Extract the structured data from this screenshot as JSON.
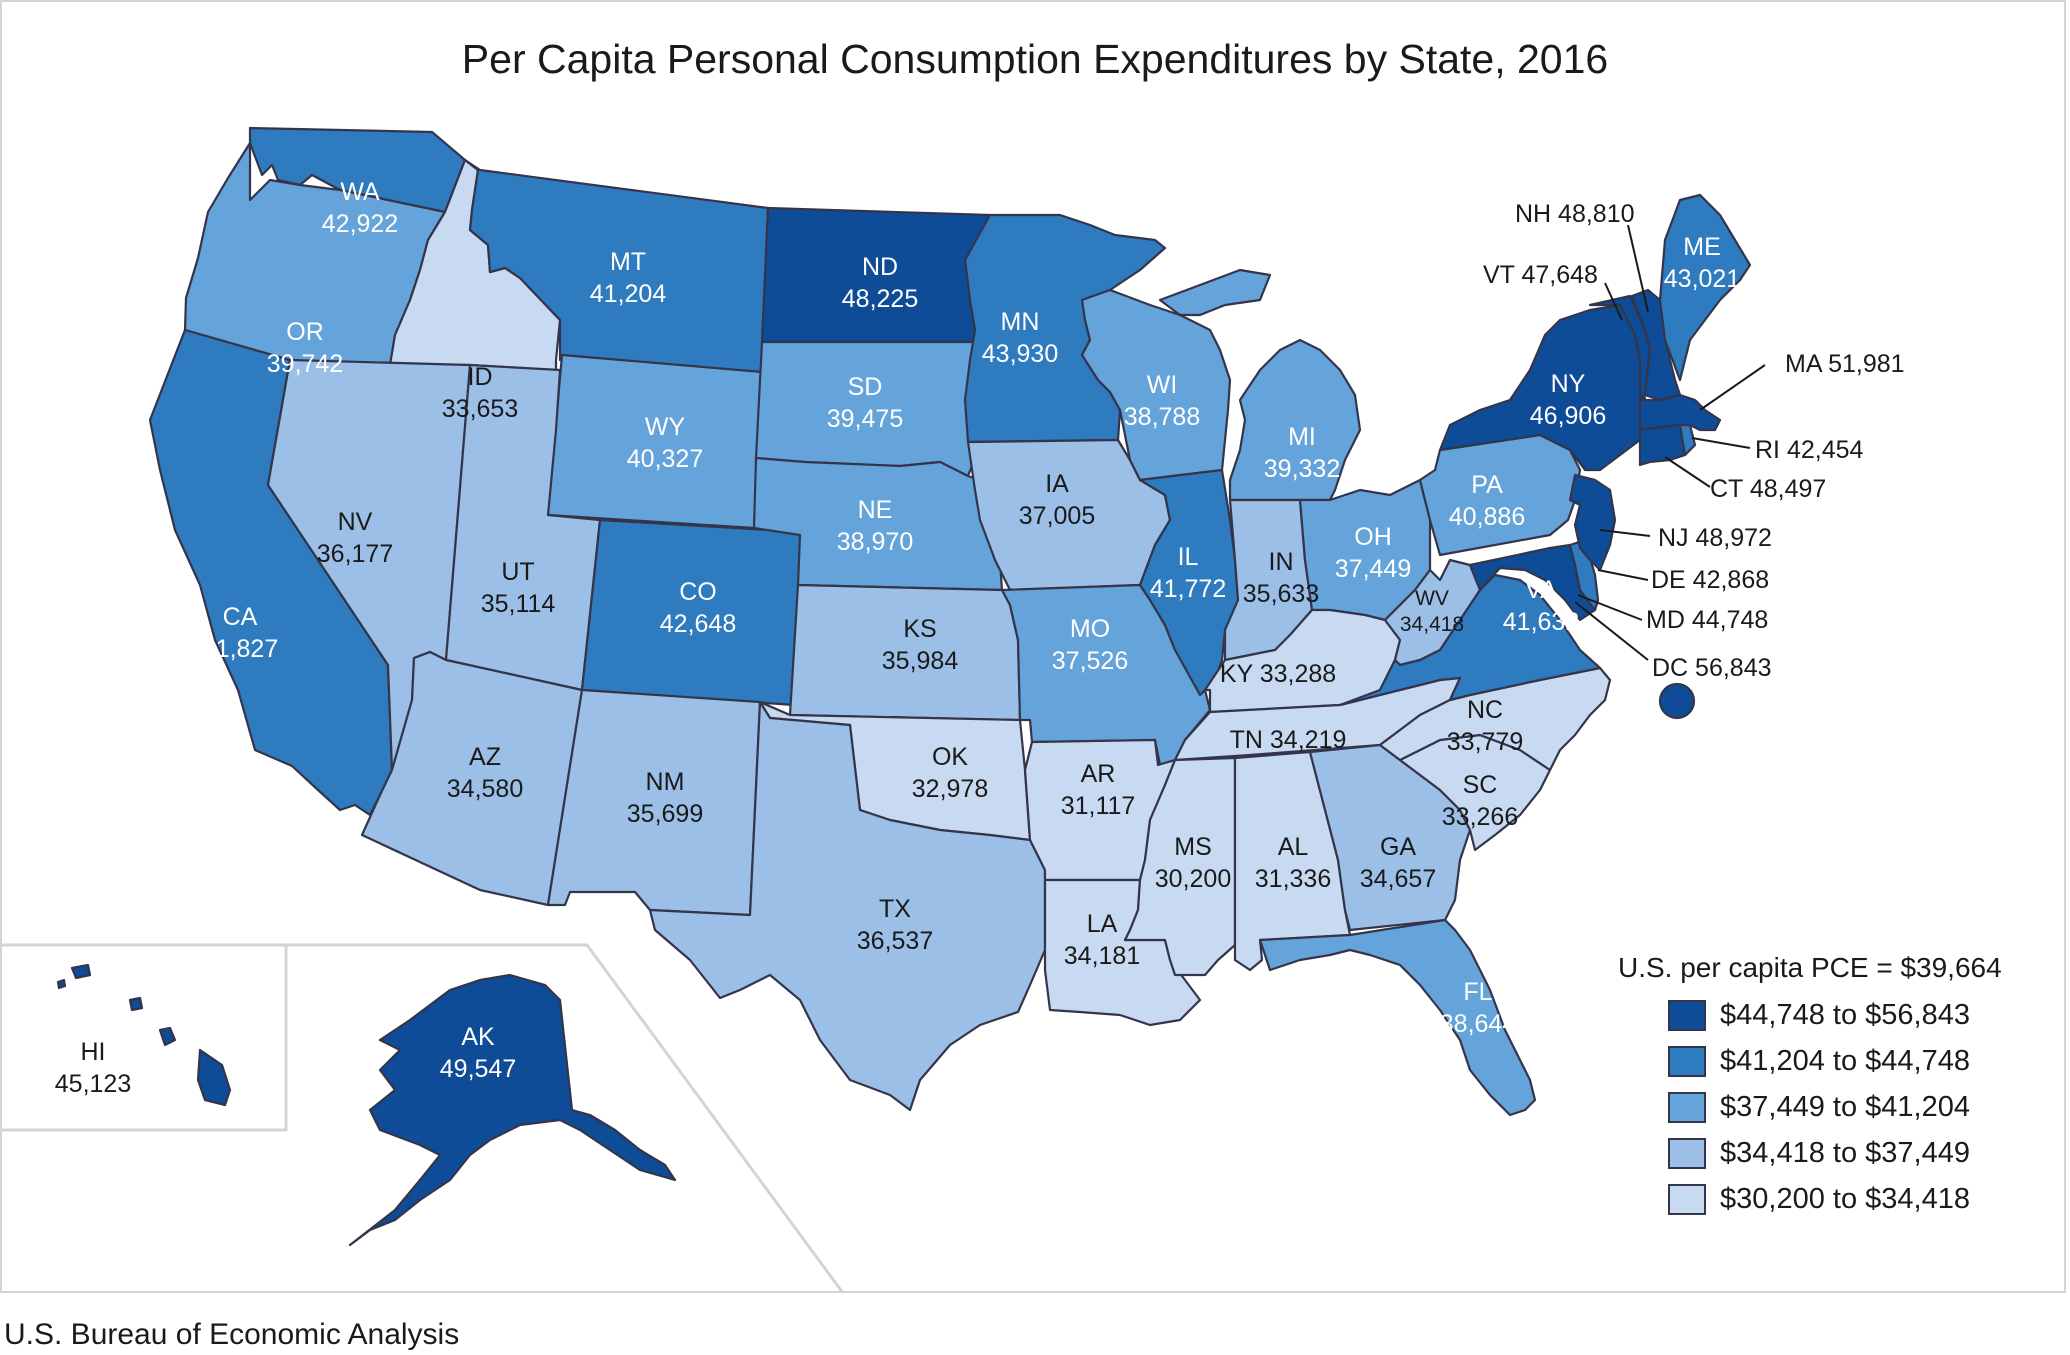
{
  "title": "Per Capita Personal Consumption Expenditures by State, 2016",
  "source": "U.S. Bureau of Economic Analysis",
  "legend": {
    "note": "U.S. per capita PCE = $39,664",
    "bins": [
      {
        "label": "$44,748 to $56,843",
        "color": "#0f4c97"
      },
      {
        "label": "$41,204 to $44,748",
        "color": "#2e7bc0"
      },
      {
        "label": "$37,449 to $41,204",
        "color": "#65a4da"
      },
      {
        "label": "$34,418 to $37,449",
        "color": "#9bbfe6"
      },
      {
        "label": "$30,200 to $34,418",
        "color": "#c8daf1"
      }
    ]
  },
  "states": {
    "WA": {
      "abbr": "WA",
      "value": "42,922",
      "bin": 1
    },
    "OR": {
      "abbr": "OR",
      "value": "39,742",
      "bin": 2
    },
    "CA": {
      "abbr": "CA",
      "value": "41,827",
      "bin": 1
    },
    "ID": {
      "abbr": "ID",
      "value": "33,653",
      "bin": 4
    },
    "NV": {
      "abbr": "NV",
      "value": "36,177",
      "bin": 3
    },
    "MT": {
      "abbr": "MT",
      "value": "41,204",
      "bin": 1
    },
    "WY": {
      "abbr": "WY",
      "value": "40,327",
      "bin": 2
    },
    "UT": {
      "abbr": "UT",
      "value": "35,114",
      "bin": 3
    },
    "AZ": {
      "abbr": "AZ",
      "value": "34,580",
      "bin": 3
    },
    "CO": {
      "abbr": "CO",
      "value": "42,648",
      "bin": 1
    },
    "NM": {
      "abbr": "NM",
      "value": "35,699",
      "bin": 3
    },
    "ND": {
      "abbr": "ND",
      "value": "48,225",
      "bin": 0
    },
    "SD": {
      "abbr": "SD",
      "value": "39,475",
      "bin": 2
    },
    "NE": {
      "abbr": "NE",
      "value": "38,970",
      "bin": 2
    },
    "KS": {
      "abbr": "KS",
      "value": "35,984",
      "bin": 3
    },
    "OK": {
      "abbr": "OK",
      "value": "32,978",
      "bin": 4
    },
    "TX": {
      "abbr": "TX",
      "value": "36,537",
      "bin": 3
    },
    "MN": {
      "abbr": "MN",
      "value": "43,930",
      "bin": 1
    },
    "IA": {
      "abbr": "IA",
      "value": "37,005",
      "bin": 3
    },
    "MO": {
      "abbr": "MO",
      "value": "37,526",
      "bin": 2
    },
    "AR": {
      "abbr": "AR",
      "value": "31,117",
      "bin": 4
    },
    "LA": {
      "abbr": "LA",
      "value": "34,181",
      "bin": 4
    },
    "WI": {
      "abbr": "WI",
      "value": "38,788",
      "bin": 2
    },
    "IL": {
      "abbr": "IL",
      "value": "41,772",
      "bin": 1
    },
    "MI": {
      "abbr": "MI",
      "value": "39,332",
      "bin": 2
    },
    "IN": {
      "abbr": "IN",
      "value": "35,633",
      "bin": 3
    },
    "OH": {
      "abbr": "OH",
      "value": "37,449",
      "bin": 2
    },
    "KY": {
      "abbr": "KY",
      "value": "33,288",
      "bin": 4
    },
    "TN": {
      "abbr": "TN",
      "value": "34,219",
      "bin": 4
    },
    "MS": {
      "abbr": "MS",
      "value": "30,200",
      "bin": 4
    },
    "AL": {
      "abbr": "AL",
      "value": "31,336",
      "bin": 4
    },
    "GA": {
      "abbr": "GA",
      "value": "34,657",
      "bin": 3
    },
    "FL": {
      "abbr": "FL",
      "value": "38,644",
      "bin": 2
    },
    "SC": {
      "abbr": "SC",
      "value": "33,266",
      "bin": 4
    },
    "NC": {
      "abbr": "NC",
      "value": "33,779",
      "bin": 4
    },
    "VA": {
      "abbr": "VA",
      "value": "41,632",
      "bin": 1
    },
    "WV": {
      "abbr": "WV",
      "value": "34,418",
      "bin": 3
    },
    "PA": {
      "abbr": "PA",
      "value": "40,886",
      "bin": 2
    },
    "NY": {
      "abbr": "NY",
      "value": "46,906",
      "bin": 0
    },
    "ME": {
      "abbr": "ME",
      "value": "43,021",
      "bin": 1
    },
    "VT": {
      "abbr": "VT",
      "value": "47,648",
      "bin": 0
    },
    "NH": {
      "abbr": "NH",
      "value": "48,810",
      "bin": 0
    },
    "MA": {
      "abbr": "MA",
      "value": "51,981",
      "bin": 0
    },
    "RI": {
      "abbr": "RI",
      "value": "42,454",
      "bin": 1
    },
    "CT": {
      "abbr": "CT",
      "value": "48,497",
      "bin": 0
    },
    "NJ": {
      "abbr": "NJ",
      "value": "48,972",
      "bin": 0
    },
    "DE": {
      "abbr": "DE",
      "value": "42,868",
      "bin": 1
    },
    "MD": {
      "abbr": "MD",
      "value": "44,748",
      "bin": 0
    },
    "DC": {
      "abbr": "DC",
      "value": "56,843",
      "bin": 0
    },
    "AK": {
      "abbr": "AK",
      "value": "49,547",
      "bin": 0
    },
    "HI": {
      "abbr": "HI",
      "value": "45,123",
      "bin": 0
    }
  }
}
